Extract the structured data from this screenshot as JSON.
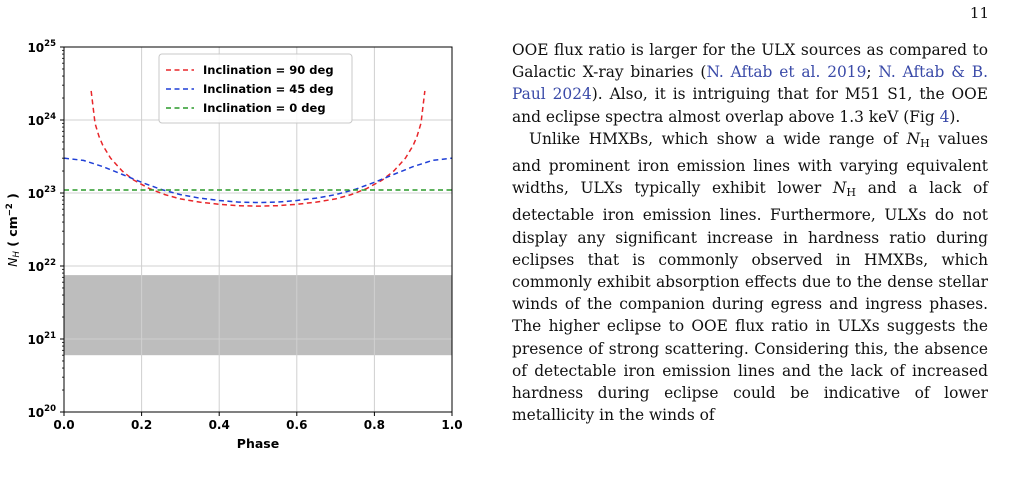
{
  "page_number": "11",
  "paragraphs": [
    {
      "t1": "OOE flux ratio is larger for the ULX sources as compared to Galactic X-ray binaries (",
      "c1": "N. Aftab et al. 2019",
      "t2": "; ",
      "c2": "N. Aftab & B. Paul 2024",
      "t3": "). Also, it is intriguing that for M51 S1, the OOE and eclipse spectra almost overlap above 1.3 keV (Fig ",
      "c3": "4",
      "t4": ")."
    },
    {
      "t1": "Unlike HMXBs, which show a wide range of ",
      "sym1": "N",
      "sub1": "H",
      "t2": " values and prominent iron emission lines with varying equivalent widths, ULXs typically exhibit lower ",
      "sym2": "N",
      "sub2": "H",
      "t3": " and a lack of detectable iron emission lines. Furthermore, ULXs do not display any significant increase in hardness ratio during eclipses that is commonly observed in HMXBs, which commonly exhibit absorption effects due to the dense stellar winds of the companion during egress and ingress phases. The higher eclipse to OOE flux ratio in ULXs suggests the presence of strong scattering. Considering this, the absence of detectable iron emission lines and the lack of increased hardness during eclipse could be indicative of lower metallicity in the winds of"
    }
  ],
  "chart_data": {
    "type": "line",
    "xlabel": "Phase",
    "ylabel_main": "N",
    "ylabel_sub": "H",
    "ylabel_unit": " ( cm",
    "ylabel_exp": "−2",
    "ylabel_close": " )",
    "xlim": [
      0.0,
      1.0
    ],
    "ylim_log10": [
      20,
      25
    ],
    "y_scale": "log",
    "grid": true,
    "legend_position": "top-center",
    "x_ticks": [
      "0.0",
      "0.2",
      "0.4",
      "0.6",
      "0.8",
      "1.0"
    ],
    "y_ticks": [
      {
        "base": "10",
        "exp": "20"
      },
      {
        "base": "10",
        "exp": "21"
      },
      {
        "base": "10",
        "exp": "22"
      },
      {
        "base": "10",
        "exp": "23"
      },
      {
        "base": "10",
        "exp": "24"
      },
      {
        "base": "10",
        "exp": "25"
      }
    ],
    "shaded_band": {
      "y_from": 6e+20,
      "y_to": 7.5e+21,
      "color": "#bdbdbd"
    },
    "series": [
      {
        "name": "Inclination = 90 deg",
        "color": "#e8262a",
        "x": [
          0.07,
          0.08,
          0.09,
          0.1,
          0.12,
          0.15,
          0.18,
          0.22,
          0.26,
          0.3,
          0.35,
          0.4,
          0.45,
          0.5,
          0.55,
          0.6,
          0.65,
          0.7,
          0.74,
          0.78,
          0.82,
          0.85,
          0.88,
          0.9,
          0.91,
          0.92,
          0.93
        ],
        "y": [
          2.5e+24,
          9e+23,
          6e+23,
          4.5e+23,
          3e+23,
          2e+23,
          1.5e+23,
          1.15e+23,
          9.5e+22,
          8.3e+22,
          7.5e+22,
          7e+22,
          6.7e+22,
          6.6e+22,
          6.7e+22,
          7e+22,
          7.5e+22,
          8.3e+22,
          9.5e+22,
          1.15e+23,
          1.5e+23,
          2e+23,
          3e+23,
          4.5e+23,
          6e+23,
          9e+23,
          2.5e+24
        ]
      },
      {
        "name": "Inclination = 45 deg",
        "color": "#1f3fd6",
        "x": [
          0.0,
          0.05,
          0.1,
          0.15,
          0.2,
          0.25,
          0.3,
          0.35,
          0.4,
          0.45,
          0.5,
          0.55,
          0.6,
          0.65,
          0.7,
          0.75,
          0.8,
          0.85,
          0.9,
          0.95,
          1.0
        ],
        "y": [
          3e+23,
          2.8e+23,
          2.3e+23,
          1.8e+23,
          1.4e+23,
          1.12e+23,
          9.5e+22,
          8.5e+22,
          7.9e+22,
          7.5e+22,
          7.4e+22,
          7.5e+22,
          7.9e+22,
          8.5e+22,
          9.5e+22,
          1.12e+23,
          1.4e+23,
          1.8e+23,
          2.3e+23,
          2.8e+23,
          3e+23
        ]
      },
      {
        "name": "Inclination = 0 deg",
        "color": "#2a9a2a",
        "x": [
          0.0,
          1.0
        ],
        "y": [
          1.1e+23,
          1.1e+23
        ]
      }
    ]
  }
}
